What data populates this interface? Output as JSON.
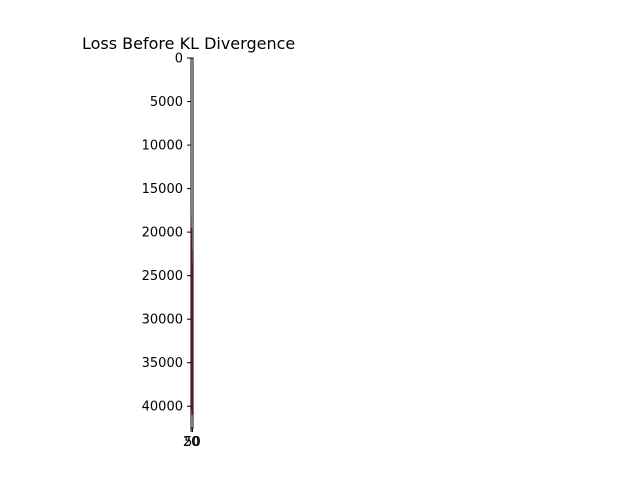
{
  "chart_data": {
    "type": "line",
    "title": "Loss Before KL Divergence",
    "xlabel": "",
    "ylabel": "",
    "y_inverted": true,
    "ylim": [
      0,
      42500
    ],
    "xlim": [
      18,
      62
    ],
    "x_ticks": [
      20,
      50
    ],
    "x_tick_labels": [
      "20",
      "50"
    ],
    "y_ticks": [
      0,
      5000,
      10000,
      15000,
      20000,
      25000,
      30000,
      35000,
      40000
    ],
    "y_tick_labels": [
      "0",
      "5000",
      "10000",
      "15000",
      "20000",
      "25000",
      "30000",
      "35000",
      "40000"
    ],
    "grid": false,
    "legend": "none",
    "series": [
      {
        "color": "#d62728",
        "x": [
          20,
          21,
          22,
          23,
          24,
          25,
          26,
          27,
          28,
          29,
          30,
          31,
          32,
          33,
          34,
          35,
          36,
          37,
          38,
          39,
          40,
          41,
          42,
          43,
          44,
          45,
          46,
          47,
          48,
          49,
          50,
          51,
          52,
          53,
          54,
          55,
          56,
          57,
          58,
          59,
          60
        ],
        "y": [
          18000,
          41000,
          22500,
          38500,
          20500,
          40000,
          24000,
          37500,
          21000,
          39500,
          26500,
          36000,
          19500,
          40500,
          28000,
          34500,
          22000,
          39000,
          30500,
          37000,
          25000,
          40000,
          33000,
          35500,
          23500,
          38000,
          31500,
          41000,
          27500,
          36500,
          32000,
          39500,
          29000,
          34000,
          37500,
          24500,
          40500,
          33500,
          38500,
          30000,
          41500
        ]
      }
    ]
  }
}
